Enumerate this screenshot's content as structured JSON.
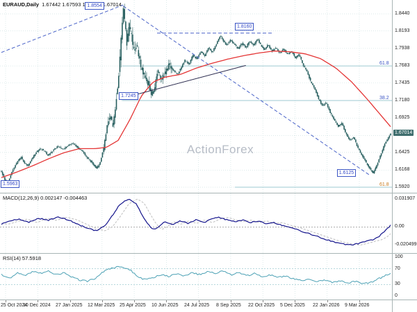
{
  "header": {
    "title": "EURAUD,Daily",
    "ohlc": "1.67442 1.67593 1.66847 1.67014"
  },
  "watermark": "ActionForex",
  "panels": {
    "macd": {
      "title": "MACD(12,26,9) 0.002147 -0.004463"
    },
    "rsi": {
      "title": "RSI(14) 57.5918"
    }
  },
  "dates": [
    "25 Oct 2024",
    "10 Dec 2024",
    "27 Jan 2025",
    "12 Mar 2025",
    "25 Apr 2025",
    "10 Jun 2025",
    "24 Jul 2025",
    "8 Sep 2025",
    "22 Oct 2025",
    "5 Dec 2025",
    "22 Jan 2026",
    "9 Mar 2026"
  ],
  "colors": {
    "candle": "#265e5e",
    "ma": "#e43434",
    "trendline": "#4a63c8",
    "solid_line": "#2b2b4e",
    "fib_line": "#9ecad0",
    "fib_blue": "#3b55c4",
    "fib_orange": "#c87a1e",
    "macd_line": "#14148c",
    "macd_signal": "#bdbdbd",
    "rsi_line": "#4aa0b4",
    "grid": "#cfe3e3",
    "tag_bg": "#3f6e6e"
  },
  "chart_data": [
    {
      "type": "candlestick",
      "symbol": "EURAUD",
      "timeframe": "Daily",
      "title": "EURAUD,Daily",
      "current": {
        "open": 1.67442,
        "high": 1.67593,
        "low": 1.66847,
        "close": 1.67014
      },
      "current_price_label": "1.67014",
      "ylim": [
        1.5839,
        1.8642
      ],
      "y_ticks": [
        1.844,
        1.8193,
        1.7938,
        1.7683,
        1.7435,
        1.718,
        1.6925,
        1.667,
        1.6425,
        1.6168,
        1.592
      ],
      "price_labels": [
        [
          1.844,
          "1.8440"
        ],
        [
          1.8193,
          "1.8193"
        ],
        [
          1.7938,
          "1.7938"
        ],
        [
          1.7683,
          "1.7683"
        ],
        [
          1.7435,
          "1.7435"
        ],
        [
          1.718,
          "1.7180"
        ],
        [
          1.6925,
          "1.6925"
        ],
        [
          1.6425,
          "1.6425"
        ],
        [
          1.6168,
          "1.6168"
        ],
        [
          1.592,
          "1.5920"
        ]
      ],
      "close_path": [
        [
          0.0,
          1.615
        ],
        [
          0.008,
          1.603
        ],
        [
          0.015,
          1.5975
        ],
        [
          0.022,
          1.606
        ],
        [
          0.03,
          1.618
        ],
        [
          0.04,
          1.628
        ],
        [
          0.05,
          1.636
        ],
        [
          0.058,
          1.628
        ],
        [
          0.068,
          1.623
        ],
        [
          0.078,
          1.633
        ],
        [
          0.088,
          1.642
        ],
        [
          0.1,
          1.648
        ],
        [
          0.11,
          1.645
        ],
        [
          0.12,
          1.638
        ],
        [
          0.132,
          1.645
        ],
        [
          0.145,
          1.652
        ],
        [
          0.158,
          1.647
        ],
        [
          0.17,
          1.652
        ],
        [
          0.182,
          1.656
        ],
        [
          0.195,
          1.65
        ],
        [
          0.208,
          1.644
        ],
        [
          0.22,
          1.635
        ],
        [
          0.232,
          1.628
        ],
        [
          0.245,
          1.619
        ],
        [
          0.255,
          1.63
        ],
        [
          0.265,
          1.655
        ],
        [
          0.272,
          1.685
        ],
        [
          0.28,
          1.695
        ],
        [
          0.287,
          1.68
        ],
        [
          0.295,
          1.72
        ],
        [
          0.302,
          1.76
        ],
        [
          0.308,
          1.81
        ],
        [
          0.313,
          1.8554
        ],
        [
          0.318,
          1.825
        ],
        [
          0.323,
          1.8
        ],
        [
          0.328,
          1.83
        ],
        [
          0.333,
          1.815
        ],
        [
          0.34,
          1.79
        ],
        [
          0.348,
          1.798
        ],
        [
          0.355,
          1.775
        ],
        [
          0.363,
          1.76
        ],
        [
          0.372,
          1.75
        ],
        [
          0.38,
          1.738
        ],
        [
          0.388,
          1.7245
        ],
        [
          0.395,
          1.74
        ],
        [
          0.402,
          1.762
        ],
        [
          0.41,
          1.75
        ],
        [
          0.42,
          1.756
        ],
        [
          0.43,
          1.77
        ],
        [
          0.44,
          1.763
        ],
        [
          0.452,
          1.756
        ],
        [
          0.462,
          1.766
        ],
        [
          0.472,
          1.777
        ],
        [
          0.482,
          1.77
        ],
        [
          0.492,
          1.785
        ],
        [
          0.502,
          1.778
        ],
        [
          0.512,
          1.79
        ],
        [
          0.522,
          1.783
        ],
        [
          0.532,
          1.795
        ],
        [
          0.542,
          1.788
        ],
        [
          0.552,
          1.8
        ],
        [
          0.562,
          1.812
        ],
        [
          0.57,
          1.805
        ],
        [
          0.578,
          1.798
        ],
        [
          0.588,
          1.806
        ],
        [
          0.598,
          1.8
        ],
        [
          0.608,
          1.793
        ],
        [
          0.618,
          1.801
        ],
        [
          0.628,
          1.795
        ],
        [
          0.638,
          1.805
        ],
        [
          0.648,
          1.798
        ],
        [
          0.658,
          1.808
        ],
        [
          0.665,
          1.8
        ],
        [
          0.675,
          1.792
        ],
        [
          0.685,
          1.799
        ],
        [
          0.695,
          1.79
        ],
        [
          0.705,
          1.795
        ],
        [
          0.715,
          1.786
        ],
        [
          0.725,
          1.793
        ],
        [
          0.735,
          1.785
        ],
        [
          0.745,
          1.79
        ],
        [
          0.755,
          1.78
        ],
        [
          0.765,
          1.785
        ],
        [
          0.775,
          1.77
        ],
        [
          0.785,
          1.76
        ],
        [
          0.795,
          1.745
        ],
        [
          0.805,
          1.735
        ],
        [
          0.815,
          1.72
        ],
        [
          0.825,
          1.71
        ],
        [
          0.835,
          1.715
        ],
        [
          0.845,
          1.7
        ],
        [
          0.855,
          1.69
        ],
        [
          0.865,
          1.68
        ],
        [
          0.875,
          1.685
        ],
        [
          0.885,
          1.67
        ],
        [
          0.895,
          1.66
        ],
        [
          0.905,
          1.665
        ],
        [
          0.915,
          1.65
        ],
        [
          0.925,
          1.64
        ],
        [
          0.935,
          1.63
        ],
        [
          0.945,
          1.62
        ],
        [
          0.955,
          1.6125
        ],
        [
          0.965,
          1.625
        ],
        [
          0.975,
          1.64
        ],
        [
          0.985,
          1.655
        ],
        [
          1.0,
          1.6701
        ]
      ],
      "ma_path": [
        [
          0.0,
          1.606
        ],
        [
          0.04,
          1.614
        ],
        [
          0.08,
          1.623
        ],
        [
          0.12,
          1.633
        ],
        [
          0.16,
          1.642
        ],
        [
          0.2,
          1.648
        ],
        [
          0.24,
          1.648
        ],
        [
          0.27,
          1.65
        ],
        [
          0.3,
          1.66
        ],
        [
          0.33,
          1.69
        ],
        [
          0.36,
          1.725
        ],
        [
          0.39,
          1.745
        ],
        [
          0.42,
          1.752
        ],
        [
          0.46,
          1.756
        ],
        [
          0.5,
          1.765
        ],
        [
          0.54,
          1.772
        ],
        [
          0.58,
          1.778
        ],
        [
          0.62,
          1.783
        ],
        [
          0.66,
          1.787
        ],
        [
          0.7,
          1.79
        ],
        [
          0.74,
          1.789
        ],
        [
          0.78,
          1.786
        ],
        [
          0.82,
          1.779
        ],
        [
          0.86,
          1.765
        ],
        [
          0.9,
          1.745
        ],
        [
          0.94,
          1.72
        ],
        [
          0.97,
          1.7
        ],
        [
          1.0,
          1.68
        ]
      ],
      "trendlines": [
        {
          "style": "dashed",
          "points": [
            [
              0.0,
              1.788
            ],
            [
              0.313,
              1.857
            ]
          ]
        },
        {
          "style": "dashed",
          "points": [
            [
              0.313,
              1.8554
            ],
            [
              0.945,
              1.61
            ]
          ]
        },
        {
          "style": "solid",
          "points": [
            [
              0.315,
              1.722
            ],
            [
              0.628,
              1.769
            ]
          ]
        },
        {
          "style": "dashed",
          "points": [
            [
              0.4,
              1.816
            ],
            [
              0.7,
              1.816
            ]
          ]
        }
      ],
      "fib_levels": [
        {
          "label": "61.8",
          "price": 1.7683,
          "from": 0.31,
          "color": "blue"
        },
        {
          "label": "38.2",
          "price": 1.718,
          "from": 0.31,
          "color": "blue"
        },
        {
          "label": "61.8",
          "price": 1.592,
          "from": 0.6,
          "color": "orange"
        }
      ],
      "annotations": [
        {
          "text": "1.8554",
          "x": 0.215,
          "price": 1.8554
        },
        {
          "text": "1.8160",
          "x": 0.6,
          "price": 1.825
        },
        {
          "text": "1.7245",
          "x": 0.302,
          "price": 1.7245
        },
        {
          "text": "1.6125",
          "x": 0.862,
          "price": 1.6125
        },
        {
          "text": "1.5963",
          "x": 0.0,
          "price": 1.5963
        }
      ]
    },
    {
      "type": "line",
      "name": "MACD(12,26,9)",
      "current": {
        "macd": 0.002147,
        "signal": -0.004463
      },
      "ylim": [
        -0.0296,
        0.0381
      ],
      "y_labels": [
        [
          0.031907,
          "0.031907"
        ],
        [
          0,
          "0.00"
        ],
        [
          -0.020499,
          "-0.020499"
        ]
      ],
      "points": [
        [
          0.0,
          0.0035
        ],
        [
          0.02,
          0.0065
        ],
        [
          0.045,
          0.009
        ],
        [
          0.07,
          0.005
        ],
        [
          0.095,
          0.01
        ],
        [
          0.12,
          0.0075
        ],
        [
          0.145,
          0.011
        ],
        [
          0.17,
          0.0085
        ],
        [
          0.195,
          0.0035
        ],
        [
          0.22,
          -0.0015
        ],
        [
          0.245,
          -0.0045
        ],
        [
          0.265,
          0.001
        ],
        [
          0.285,
          0.013
        ],
        [
          0.305,
          0.026
        ],
        [
          0.327,
          0.0319
        ],
        [
          0.345,
          0.027
        ],
        [
          0.36,
          0.015
        ],
        [
          0.375,
          0.004
        ],
        [
          0.39,
          -0.003
        ],
        [
          0.405,
          0.0005
        ],
        [
          0.42,
          0.006
        ],
        [
          0.44,
          0.003
        ],
        [
          0.46,
          0.007
        ],
        [
          0.48,
          0.004
        ],
        [
          0.5,
          0.008
        ],
        [
          0.52,
          0.005
        ],
        [
          0.54,
          0.009
        ],
        [
          0.56,
          0.011
        ],
        [
          0.58,
          0.008
        ],
        [
          0.6,
          0.006
        ],
        [
          0.62,
          0.008
        ],
        [
          0.64,
          0.005
        ],
        [
          0.66,
          0.007
        ],
        [
          0.68,
          0.004
        ],
        [
          0.7,
          0.005
        ],
        [
          0.72,
          0.002
        ],
        [
          0.74,
          0.0
        ],
        [
          0.76,
          -0.003
        ],
        [
          0.78,
          -0.006
        ],
        [
          0.8,
          -0.009
        ],
        [
          0.82,
          -0.012
        ],
        [
          0.84,
          -0.015
        ],
        [
          0.86,
          -0.0175
        ],
        [
          0.88,
          -0.0195
        ],
        [
          0.9,
          -0.0205
        ],
        [
          0.92,
          -0.0185
        ],
        [
          0.94,
          -0.016
        ],
        [
          0.955,
          -0.0145
        ],
        [
          0.97,
          -0.011
        ],
        [
          0.985,
          -0.0045
        ],
        [
          1.0,
          0.0021
        ]
      ]
    },
    {
      "type": "line",
      "name": "RSI(14)",
      "current": 57.5918,
      "ylim": [
        -8,
        108
      ],
      "levels": [
        70,
        30
      ],
      "y_labels": [
        [
          100,
          "100"
        ],
        [
          70,
          "70"
        ],
        [
          30,
          "30"
        ],
        [
          0,
          "0"
        ]
      ],
      "points": [
        [
          0.0,
          55
        ],
        [
          0.02,
          45
        ],
        [
          0.04,
          60
        ],
        [
          0.06,
          52
        ],
        [
          0.08,
          63
        ],
        [
          0.1,
          58
        ],
        [
          0.12,
          65
        ],
        [
          0.14,
          55
        ],
        [
          0.16,
          60
        ],
        [
          0.18,
          50
        ],
        [
          0.2,
          42
        ],
        [
          0.22,
          38
        ],
        [
          0.24,
          45
        ],
        [
          0.26,
          62
        ],
        [
          0.28,
          70
        ],
        [
          0.3,
          75
        ],
        [
          0.315,
          72
        ],
        [
          0.33,
          68
        ],
        [
          0.35,
          50
        ],
        [
          0.37,
          42
        ],
        [
          0.39,
          48
        ],
        [
          0.41,
          55
        ],
        [
          0.43,
          50
        ],
        [
          0.45,
          58
        ],
        [
          0.47,
          52
        ],
        [
          0.49,
          60
        ],
        [
          0.51,
          55
        ],
        [
          0.53,
          62
        ],
        [
          0.55,
          58
        ],
        [
          0.57,
          65
        ],
        [
          0.59,
          55
        ],
        [
          0.61,
          60
        ],
        [
          0.63,
          52
        ],
        [
          0.65,
          58
        ],
        [
          0.67,
          50
        ],
        [
          0.69,
          55
        ],
        [
          0.71,
          48
        ],
        [
          0.73,
          52
        ],
        [
          0.75,
          45
        ],
        [
          0.77,
          40
        ],
        [
          0.79,
          45
        ],
        [
          0.81,
          38
        ],
        [
          0.83,
          42
        ],
        [
          0.85,
          35
        ],
        [
          0.87,
          40
        ],
        [
          0.89,
          33
        ],
        [
          0.91,
          38
        ],
        [
          0.93,
          32
        ],
        [
          0.95,
          36
        ],
        [
          0.97,
          45
        ],
        [
          0.985,
          52
        ],
        [
          1.0,
          57.6
        ]
      ]
    }
  ]
}
